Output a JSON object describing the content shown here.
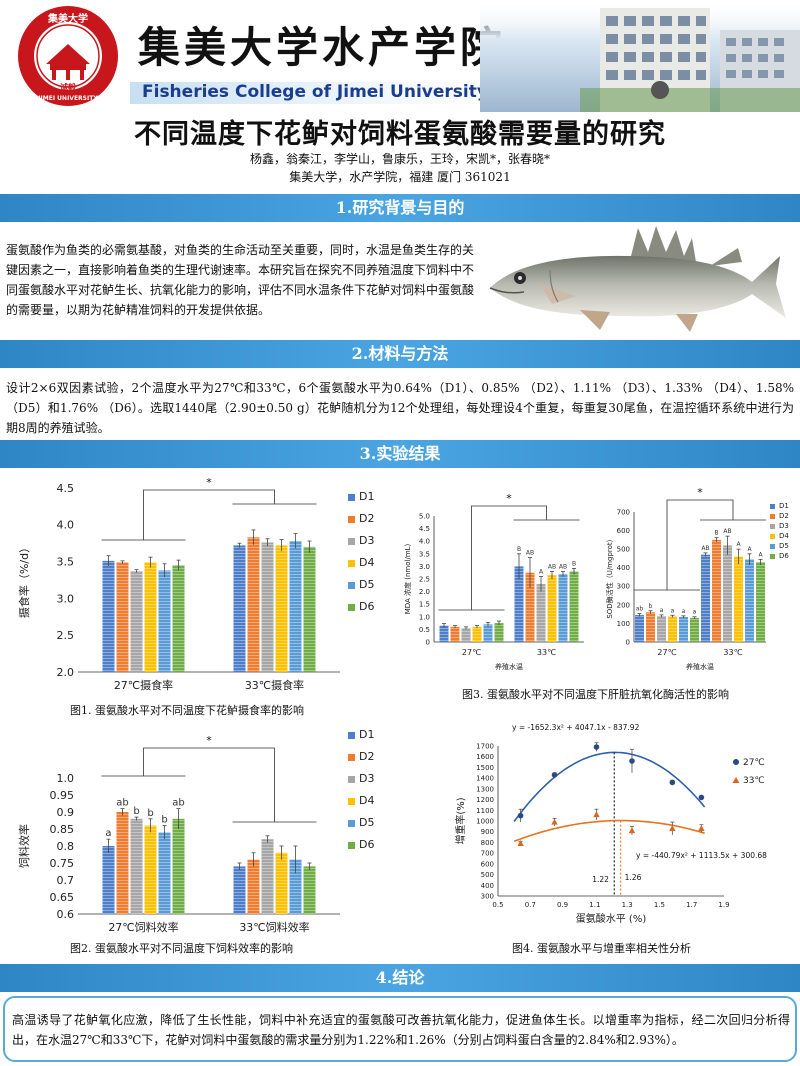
{
  "header": {
    "cn_name": "集美大学水产学院",
    "en_name": "Fisheries College of Jimei University",
    "logo": {
      "ring_text": "集美大学",
      "ring_text_en": "JIMEI UNIVERSITY",
      "motto": "诚毅",
      "year": "1918"
    }
  },
  "title": "不同温度下花鲈对饲料蛋氨酸需要量的研究",
  "authors": "杨鑫，翁秦江，李学山，鲁康乐，王玲，宋凯*，张春晓*",
  "affiliation": "集美大学，水产学院，福建  厦门  361021",
  "sections": {
    "s1": "1.研究背景与目的",
    "s2": "2.材料与方法",
    "s3": "3.实验结果",
    "s4": "4.结论"
  },
  "background_text": "蛋氨酸作为鱼类的必需氨基酸，对鱼类的生命活动至关重要，同时，水温是鱼类生存的关键因素之一，直接影响着鱼类的生理代谢速率。本研究旨在探究不同养殖温度下饲料中不同蛋氨酸水平对花鲈生长、抗氧化能力的影响，评估不同水温条件下花鲈对饲料中蛋氨酸的需要量，以期为花鲈精准饲料的开发提供依据。",
  "methods_text": "设计2×6双因素试验，2个温度水平为27℃和33℃，6个蛋氨酸水平为0.64%（D1）、0.85%  （D2）、1.11%  （D3）、1.33%  （D4）、1.58%  （D5）和1.76%  （D6）。选取1440尾（2.90±0.50 g）花鲈随机分为12个处理组，每处理设4个重复，每重复30尾鱼，在温控循环系统中进行为期8周的养殖试验。",
  "legend_labels": [
    "D1",
    "D2",
    "D3",
    "D4",
    "D5",
    "D6"
  ],
  "colors": {
    "D1": "#4f7fc9",
    "D2": "#ee7d32",
    "D3": "#a6a6a6",
    "D4": "#ffc000",
    "D5": "#5b9bd5",
    "D6": "#70ad47",
    "section": "#3a95d4",
    "curve27": "#2e5fb0",
    "curve33": "#e5731f"
  },
  "chart_data": [
    {
      "id": "fig1",
      "type": "bar",
      "caption": "图1. 蛋氨酸水平对不同温度下花鲈摄食率的影响",
      "ylabel": "摄食率（%/d）",
      "ylim": [
        2.0,
        4.5
      ],
      "yticks": [
        "2.0",
        "2.5",
        "3.0",
        "3.5",
        "4.0",
        "4.5"
      ],
      "categories": [
        "27℃摄食率",
        "33℃摄食率"
      ],
      "series": [
        {
          "name": "D1",
          "values": [
            3.51,
            3.72
          ],
          "err": [
            0.07,
            0.03
          ]
        },
        {
          "name": "D2",
          "values": [
            3.49,
            3.83
          ],
          "err": [
            0.02,
            0.1
          ]
        },
        {
          "name": "D3",
          "values": [
            3.37,
            3.76
          ],
          "err": [
            0.02,
            0.05
          ]
        },
        {
          "name": "D4",
          "values": [
            3.49,
            3.72
          ],
          "err": [
            0.07,
            0.08
          ]
        },
        {
          "name": "D5",
          "values": [
            3.38,
            3.78
          ],
          "err": [
            0.09,
            0.1
          ]
        },
        {
          "name": "D6",
          "values": [
            3.45,
            3.7
          ],
          "err": [
            0.07,
            0.08
          ]
        }
      ],
      "sig": "*"
    },
    {
      "id": "fig2",
      "type": "bar",
      "caption": "图2. 蛋氨酸水平对不同温度下饲料效率的影响",
      "ylabel": "饲料效率",
      "ylim": [
        0.6,
        1.0
      ],
      "yticks": [
        "0.6",
        "0.65",
        "0.7",
        "0.75",
        "0.8",
        "0.85",
        "0.9",
        "0.95",
        "1.0"
      ],
      "categories": [
        "27℃饲料效率",
        "33℃饲料效率"
      ],
      "series": [
        {
          "name": "D1",
          "values": [
            0.8,
            0.74
          ],
          "err": [
            0.02,
            0.01
          ],
          "letters": [
            "a",
            ""
          ]
        },
        {
          "name": "D2",
          "values": [
            0.9,
            0.76
          ],
          "err": [
            0.01,
            0.02
          ],
          "letters": [
            "ab",
            ""
          ]
        },
        {
          "name": "D3",
          "values": [
            0.88,
            0.82
          ],
          "err": [
            0.005,
            0.01
          ],
          "letters": [
            "b",
            ""
          ]
        },
        {
          "name": "D4",
          "values": [
            0.86,
            0.78
          ],
          "err": [
            0.02,
            0.02
          ],
          "letters": [
            "b",
            ""
          ]
        },
        {
          "name": "D5",
          "values": [
            0.84,
            0.76
          ],
          "err": [
            0.02,
            0.04
          ],
          "letters": [
            "b",
            ""
          ]
        },
        {
          "name": "D6",
          "values": [
            0.88,
            0.74
          ],
          "err": [
            0.03,
            0.01
          ],
          "letters": [
            "ab",
            ""
          ]
        }
      ],
      "sig": "*"
    },
    {
      "id": "fig3a",
      "type": "bar",
      "ylabel": "MDA 浓度 (nmol/mL)",
      "xlabel": "养殖水温",
      "ylim": [
        0,
        5.0
      ],
      "yticks": [
        "0",
        "0.5",
        "1.0",
        "1.5",
        "2.0",
        "2.5",
        "3.0",
        "3.5",
        "4.0",
        "4.5",
        "5.0"
      ],
      "categories": [
        "27℃",
        "33℃"
      ],
      "series": [
        {
          "name": "D1",
          "values": [
            0.65,
            3.0
          ],
          "err": [
            0.08,
            0.5
          ],
          "letters": [
            "",
            "B"
          ]
        },
        {
          "name": "D2",
          "values": [
            0.6,
            2.75
          ],
          "err": [
            0.05,
            0.6
          ],
          "letters": [
            "",
            "AB"
          ]
        },
        {
          "name": "D3",
          "values": [
            0.55,
            2.3
          ],
          "err": [
            0.05,
            0.3
          ],
          "letters": [
            "",
            "A"
          ]
        },
        {
          "name": "D4",
          "values": [
            0.6,
            2.65
          ],
          "err": [
            0.05,
            0.15
          ],
          "letters": [
            "",
            "AB"
          ]
        },
        {
          "name": "D5",
          "values": [
            0.7,
            2.7
          ],
          "err": [
            0.08,
            0.1
          ],
          "letters": [
            "",
            "AB"
          ]
        },
        {
          "name": "D6",
          "values": [
            0.75,
            2.8
          ],
          "err": [
            0.08,
            0.12
          ],
          "letters": [
            "",
            "B"
          ]
        }
      ],
      "sig": "*"
    },
    {
      "id": "fig3b",
      "type": "bar",
      "ylabel": "SOD酶活性（U/mgprot）",
      "xlabel": "养殖水温",
      "ylim": [
        0,
        700
      ],
      "yticks": [
        "0",
        "100",
        "200",
        "300",
        "400",
        "500",
        "600",
        "700"
      ],
      "categories": [
        "27℃",
        "33℃"
      ],
      "series": [
        {
          "name": "D1",
          "values": [
            145,
            470
          ],
          "err": [
            8,
            10
          ],
          "letters": [
            "ab",
            "AB"
          ]
        },
        {
          "name": "D2",
          "values": [
            160,
            550
          ],
          "err": [
            8,
            12
          ],
          "letters": [
            "b",
            "B"
          ]
        },
        {
          "name": "D3",
          "values": [
            140,
            520
          ],
          "err": [
            6,
            50
          ],
          "letters": [
            "a",
            "AB"
          ]
        },
        {
          "name": "D4",
          "values": [
            138,
            460
          ],
          "err": [
            6,
            40
          ],
          "letters": [
            "a",
            "A"
          ]
        },
        {
          "name": "D5",
          "values": [
            135,
            445
          ],
          "err": [
            6,
            30
          ],
          "letters": [
            "a",
            "A"
          ]
        },
        {
          "name": "D6",
          "values": [
            130,
            430
          ],
          "err": [
            6,
            15
          ],
          "letters": [
            "a",
            "A"
          ]
        }
      ],
      "sig": "*"
    },
    {
      "id": "fig4",
      "type": "scatter",
      "caption": "图4. 蛋氨酸水平与增重率相关性分析",
      "xlabel": "蛋氨酸水平 (%)",
      "ylabel": "增重率(%)",
      "xlim": [
        0.5,
        1.9
      ],
      "ylim": [
        300,
        1700
      ],
      "xticks": [
        "0.5",
        "0.7",
        "0.9",
        "1.1",
        "1.3",
        "1.5",
        "1.7",
        "1.9"
      ],
      "yticks": [
        "300",
        "400",
        "500",
        "600",
        "700",
        "800",
        "900",
        "1000",
        "1100",
        "1200",
        "1300",
        "1400",
        "1500",
        "1600",
        "1700"
      ],
      "series": [
        {
          "name": "27℃",
          "x": [
            0.64,
            0.85,
            1.11,
            1.33,
            1.58,
            1.76
          ],
          "y": [
            1050,
            1430,
            1690,
            1560,
            1360,
            1220
          ],
          "err": [
            60,
            20,
            40,
            110,
            20,
            15
          ],
          "fit": [
            -1652.3,
            4047.1,
            -837.92
          ],
          "equation": "y = -1652.3x² + 4047.1x - 837.92",
          "optimum": "1.22"
        },
        {
          "name": "33℃",
          "x": [
            0.64,
            0.85,
            1.11,
            1.33,
            1.58,
            1.76
          ],
          "y": [
            790,
            990,
            1060,
            910,
            930,
            930
          ],
          "err": [
            20,
            35,
            50,
            40,
            60,
            35
          ],
          "fit": [
            -440.79,
            1113.5,
            300.68
          ],
          "equation": "y = -440.79x² + 1113.5x + 300.68",
          "optimum": "1.26"
        }
      ]
    }
  ],
  "fig3_caption": "图3. 蛋氨酸水平对不同温度下肝脏抗氧化酶活性的影响",
  "conclusion_text": "高温诱导了花鲈氧化应激，降低了生长性能，饲料中补充适宜的蛋氨酸可改善抗氧化能力，促进鱼体生长。以增重率为指标，经二次回归分析得出，在水温27℃和33℃下，花鲈对饲料中蛋氨酸的需求量分别为1.22%和1.26%（分别占饲料蛋白含量的2.84%和2.93%）。"
}
